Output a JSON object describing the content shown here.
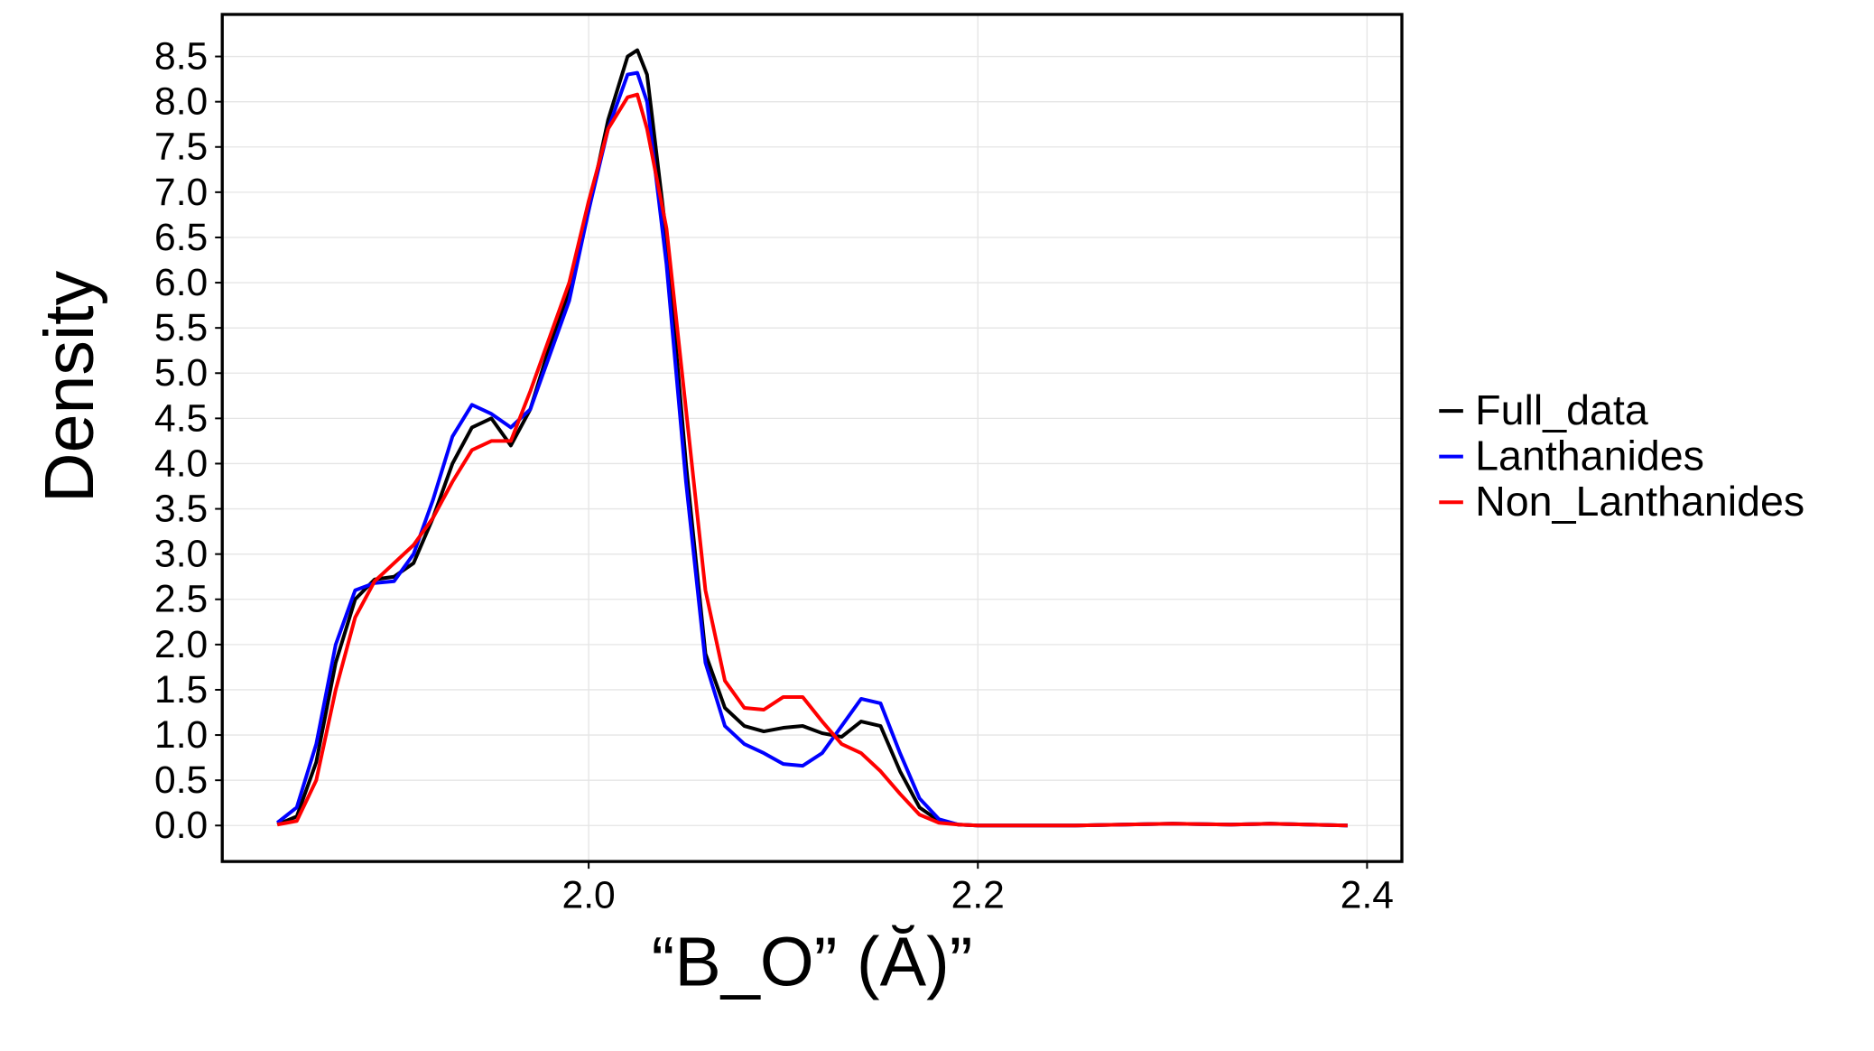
{
  "chart_data": {
    "type": "line",
    "x_label": "“B_O” (Ă)”",
    "y_label": "Density",
    "x": [
      1.84,
      1.85,
      1.86,
      1.87,
      1.88,
      1.89,
      1.9,
      1.91,
      1.92,
      1.93,
      1.94,
      1.95,
      1.96,
      1.97,
      1.98,
      1.99,
      2.0,
      2.01,
      2.02,
      2.025,
      2.03,
      2.04,
      2.05,
      2.06,
      2.07,
      2.08,
      2.09,
      2.1,
      2.11,
      2.12,
      2.13,
      2.14,
      2.15,
      2.16,
      2.17,
      2.18,
      2.19,
      2.2,
      2.25,
      2.3,
      2.33,
      2.35,
      2.39
    ],
    "series": [
      {
        "name": "Full_data",
        "color": "#000000",
        "values": [
          0.01,
          0.1,
          0.7,
          1.8,
          2.5,
          2.72,
          2.75,
          2.9,
          3.4,
          4.0,
          4.4,
          4.5,
          4.2,
          4.6,
          5.3,
          5.9,
          6.8,
          7.8,
          8.5,
          8.57,
          8.3,
          6.5,
          4.0,
          1.9,
          1.3,
          1.1,
          1.04,
          1.08,
          1.1,
          1.02,
          0.98,
          1.15,
          1.1,
          0.6,
          0.2,
          0.05,
          0.01,
          0,
          0,
          0.02,
          0.01,
          0.02,
          0
        ]
      },
      {
        "name": "Lanthanides",
        "color": "#0000ff",
        "values": [
          0.03,
          0.2,
          0.9,
          2.0,
          2.6,
          2.68,
          2.7,
          3.0,
          3.6,
          4.3,
          4.65,
          4.55,
          4.4,
          4.6,
          5.2,
          5.8,
          6.8,
          7.7,
          8.3,
          8.32,
          8.0,
          6.2,
          3.8,
          1.8,
          1.1,
          0.9,
          0.8,
          0.68,
          0.66,
          0.8,
          1.1,
          1.4,
          1.35,
          0.8,
          0.3,
          0.07,
          0.01,
          0,
          0,
          0.02,
          0.01,
          0.02,
          0
        ]
      },
      {
        "name": "Non_Lanthanides",
        "color": "#ff0000",
        "values": [
          0.01,
          0.05,
          0.5,
          1.5,
          2.3,
          2.7,
          2.9,
          3.1,
          3.4,
          3.8,
          4.15,
          4.25,
          4.25,
          4.8,
          5.4,
          6.0,
          6.9,
          7.7,
          8.05,
          8.08,
          7.7,
          6.6,
          4.6,
          2.6,
          1.6,
          1.3,
          1.28,
          1.42,
          1.42,
          1.15,
          0.9,
          0.8,
          0.6,
          0.35,
          0.12,
          0.03,
          0.01,
          0,
          0,
          0.02,
          0.01,
          0.02,
          0
        ]
      }
    ],
    "xlim": [
      1.8117,
      2.4179
    ],
    "ylim": [
      -0.398,
      8.965
    ],
    "xticks": [
      {
        "value": 2.0,
        "label": "2.0"
      },
      {
        "value": 2.2,
        "label": "2.2"
      },
      {
        "value": 2.4,
        "label": "2.4"
      }
    ],
    "yticks": [
      {
        "value": 0,
        "label": "0.0"
      },
      0.5,
      {
        "value": 1,
        "label": "1.0"
      },
      1.5,
      {
        "value": 2,
        "label": "2.0"
      },
      2.5,
      {
        "value": 3,
        "label": "3.0"
      },
      3.5,
      {
        "value": 4,
        "label": "4.0"
      },
      4.5,
      {
        "value": 5,
        "label": "5.0"
      },
      5.5,
      {
        "value": 6,
        "label": "6.0"
      },
      6.5,
      {
        "value": 7,
        "label": "7.0"
      },
      7.5,
      {
        "value": 8,
        "label": "8.0"
      },
      8.5
    ],
    "grid": true,
    "legend": "right"
  }
}
